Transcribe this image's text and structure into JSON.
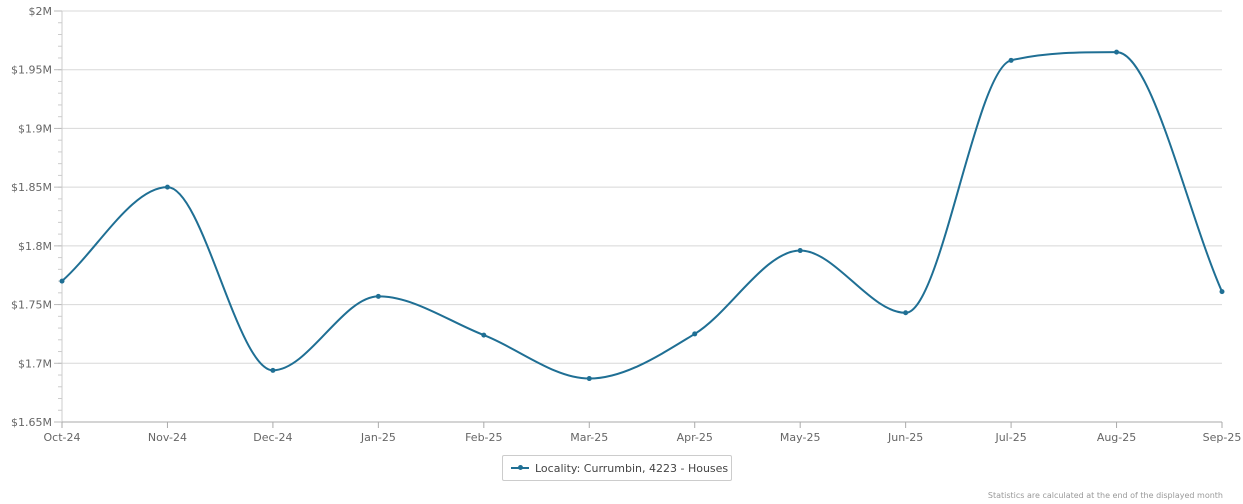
{
  "chart_data": {
    "type": "line",
    "categories": [
      "Oct-24",
      "Nov-24",
      "Dec-24",
      "Jan-25",
      "Feb-25",
      "Mar-25",
      "Apr-25",
      "May-25",
      "Jun-25",
      "Jul-25",
      "Aug-25",
      "Sep-25"
    ],
    "series": [
      {
        "name": "Locality: Currumbin, 4223 - Houses",
        "values": [
          1770000,
          1850000,
          1694000,
          1757000,
          1724000,
          1687000,
          1725000,
          1796000,
          1743000,
          1958000,
          1965000,
          1761000
        ]
      }
    ],
    "ylim": [
      1650000,
      2000000
    ],
    "yticks": [
      {
        "value": 1650000,
        "label": "$1.65M"
      },
      {
        "value": 1700000,
        "label": "$1.7M"
      },
      {
        "value": 1750000,
        "label": "$1.75M"
      },
      {
        "value": 1800000,
        "label": "$1.8M"
      },
      {
        "value": 1850000,
        "label": "$1.85M"
      },
      {
        "value": 1900000,
        "label": "$1.9M"
      },
      {
        "value": 1950000,
        "label": "$1.95M"
      },
      {
        "value": 2000000,
        "label": "$2M"
      }
    ],
    "grid": true,
    "legend_position": "bottom",
    "line_color": "#1f6f94"
  },
  "legend": {
    "label": "Locality: Currumbin, 4223 - Houses"
  },
  "footnote": "Statistics are calculated at the end of the displayed month"
}
